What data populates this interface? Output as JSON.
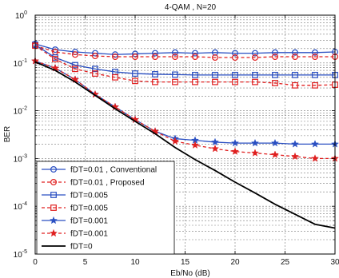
{
  "chart_data": {
    "type": "line",
    "title": "4-QAM , N=20",
    "xlabel": "Eb/No (dB)",
    "ylabel": "BER",
    "x_scale": "linear",
    "y_scale": "log",
    "xlim": [
      0,
      30
    ],
    "ylim": [
      1e-05,
      1
    ],
    "x_ticks": [
      0,
      5,
      10,
      15,
      20,
      25,
      30
    ],
    "x_tick_labels": [
      "0",
      "5",
      "10",
      "15",
      "20",
      "25",
      "30"
    ],
    "y_tick_exponents": [
      0,
      -1,
      -2,
      -3,
      -4,
      -5
    ],
    "y_tick_base": "10",
    "grid": true,
    "legend_position": "bottom-left",
    "x": [
      0,
      2,
      4,
      6,
      8,
      10,
      12,
      14,
      16,
      18,
      20,
      22,
      24,
      26,
      28,
      30
    ],
    "series": [
      {
        "name": "fDT=0.01 , Conventional",
        "color": "#2a4fc2",
        "line_style": "solid",
        "marker": "circle",
        "values": [
          0.25,
          0.19,
          0.17,
          0.16,
          0.15,
          0.155,
          0.16,
          0.165,
          0.16,
          0.165,
          0.16,
          0.16,
          0.165,
          0.165,
          0.165,
          0.17
        ]
      },
      {
        "name": "fDT=0.01 , Proposed",
        "color": "#e02020",
        "line_style": "dashed",
        "marker": "circle",
        "values": [
          0.23,
          0.17,
          0.15,
          0.14,
          0.135,
          0.135,
          0.135,
          0.135,
          0.135,
          0.13,
          0.13,
          0.13,
          0.135,
          0.135,
          0.135,
          0.135
        ]
      },
      {
        "name": "fDT=0.005",
        "color": "#2a4fc2",
        "line_style": "solid",
        "marker": "square",
        "values": [
          0.24,
          0.13,
          0.09,
          0.075,
          0.065,
          0.06,
          0.058,
          0.057,
          0.056,
          0.056,
          0.056,
          0.056,
          0.056,
          0.056,
          0.056,
          0.056
        ]
      },
      {
        "name": "fDT=0.005",
        "color": "#e02020",
        "line_style": "dashed",
        "marker": "square",
        "values": [
          0.23,
          0.12,
          0.075,
          0.06,
          0.05,
          0.042,
          0.04,
          0.04,
          0.04,
          0.04,
          0.04,
          0.04,
          0.038,
          0.034,
          0.034,
          0.035
        ]
      },
      {
        "name": "fDT=0.001",
        "color": "#2a4fc2",
        "line_style": "solid",
        "marker": "star",
        "values": [
          0.11,
          0.078,
          0.045,
          0.022,
          0.012,
          0.0065,
          0.0037,
          0.0026,
          0.0024,
          0.0022,
          0.0021,
          0.0021,
          0.0021,
          0.002,
          0.002,
          0.002
        ]
      },
      {
        "name": "fDT=0.001",
        "color": "#e02020",
        "line_style": "dashed",
        "marker": "star",
        "values": [
          0.11,
          0.078,
          0.045,
          0.022,
          0.012,
          0.0065,
          0.0037,
          0.0023,
          0.0019,
          0.0016,
          0.0014,
          0.0013,
          0.0012,
          0.0011,
          0.001,
          0.001
        ]
      },
      {
        "name": "fDT=0",
        "color": "#000000",
        "line_style": "solid",
        "marker": "none",
        "values": [
          0.105,
          0.07,
          0.04,
          0.021,
          0.011,
          0.006,
          0.0033,
          0.0017,
          0.00095,
          0.00056,
          0.00032,
          0.00019,
          0.00011,
          6.8e-05,
          4.2e-05,
          3.5e-05
        ]
      }
    ]
  }
}
